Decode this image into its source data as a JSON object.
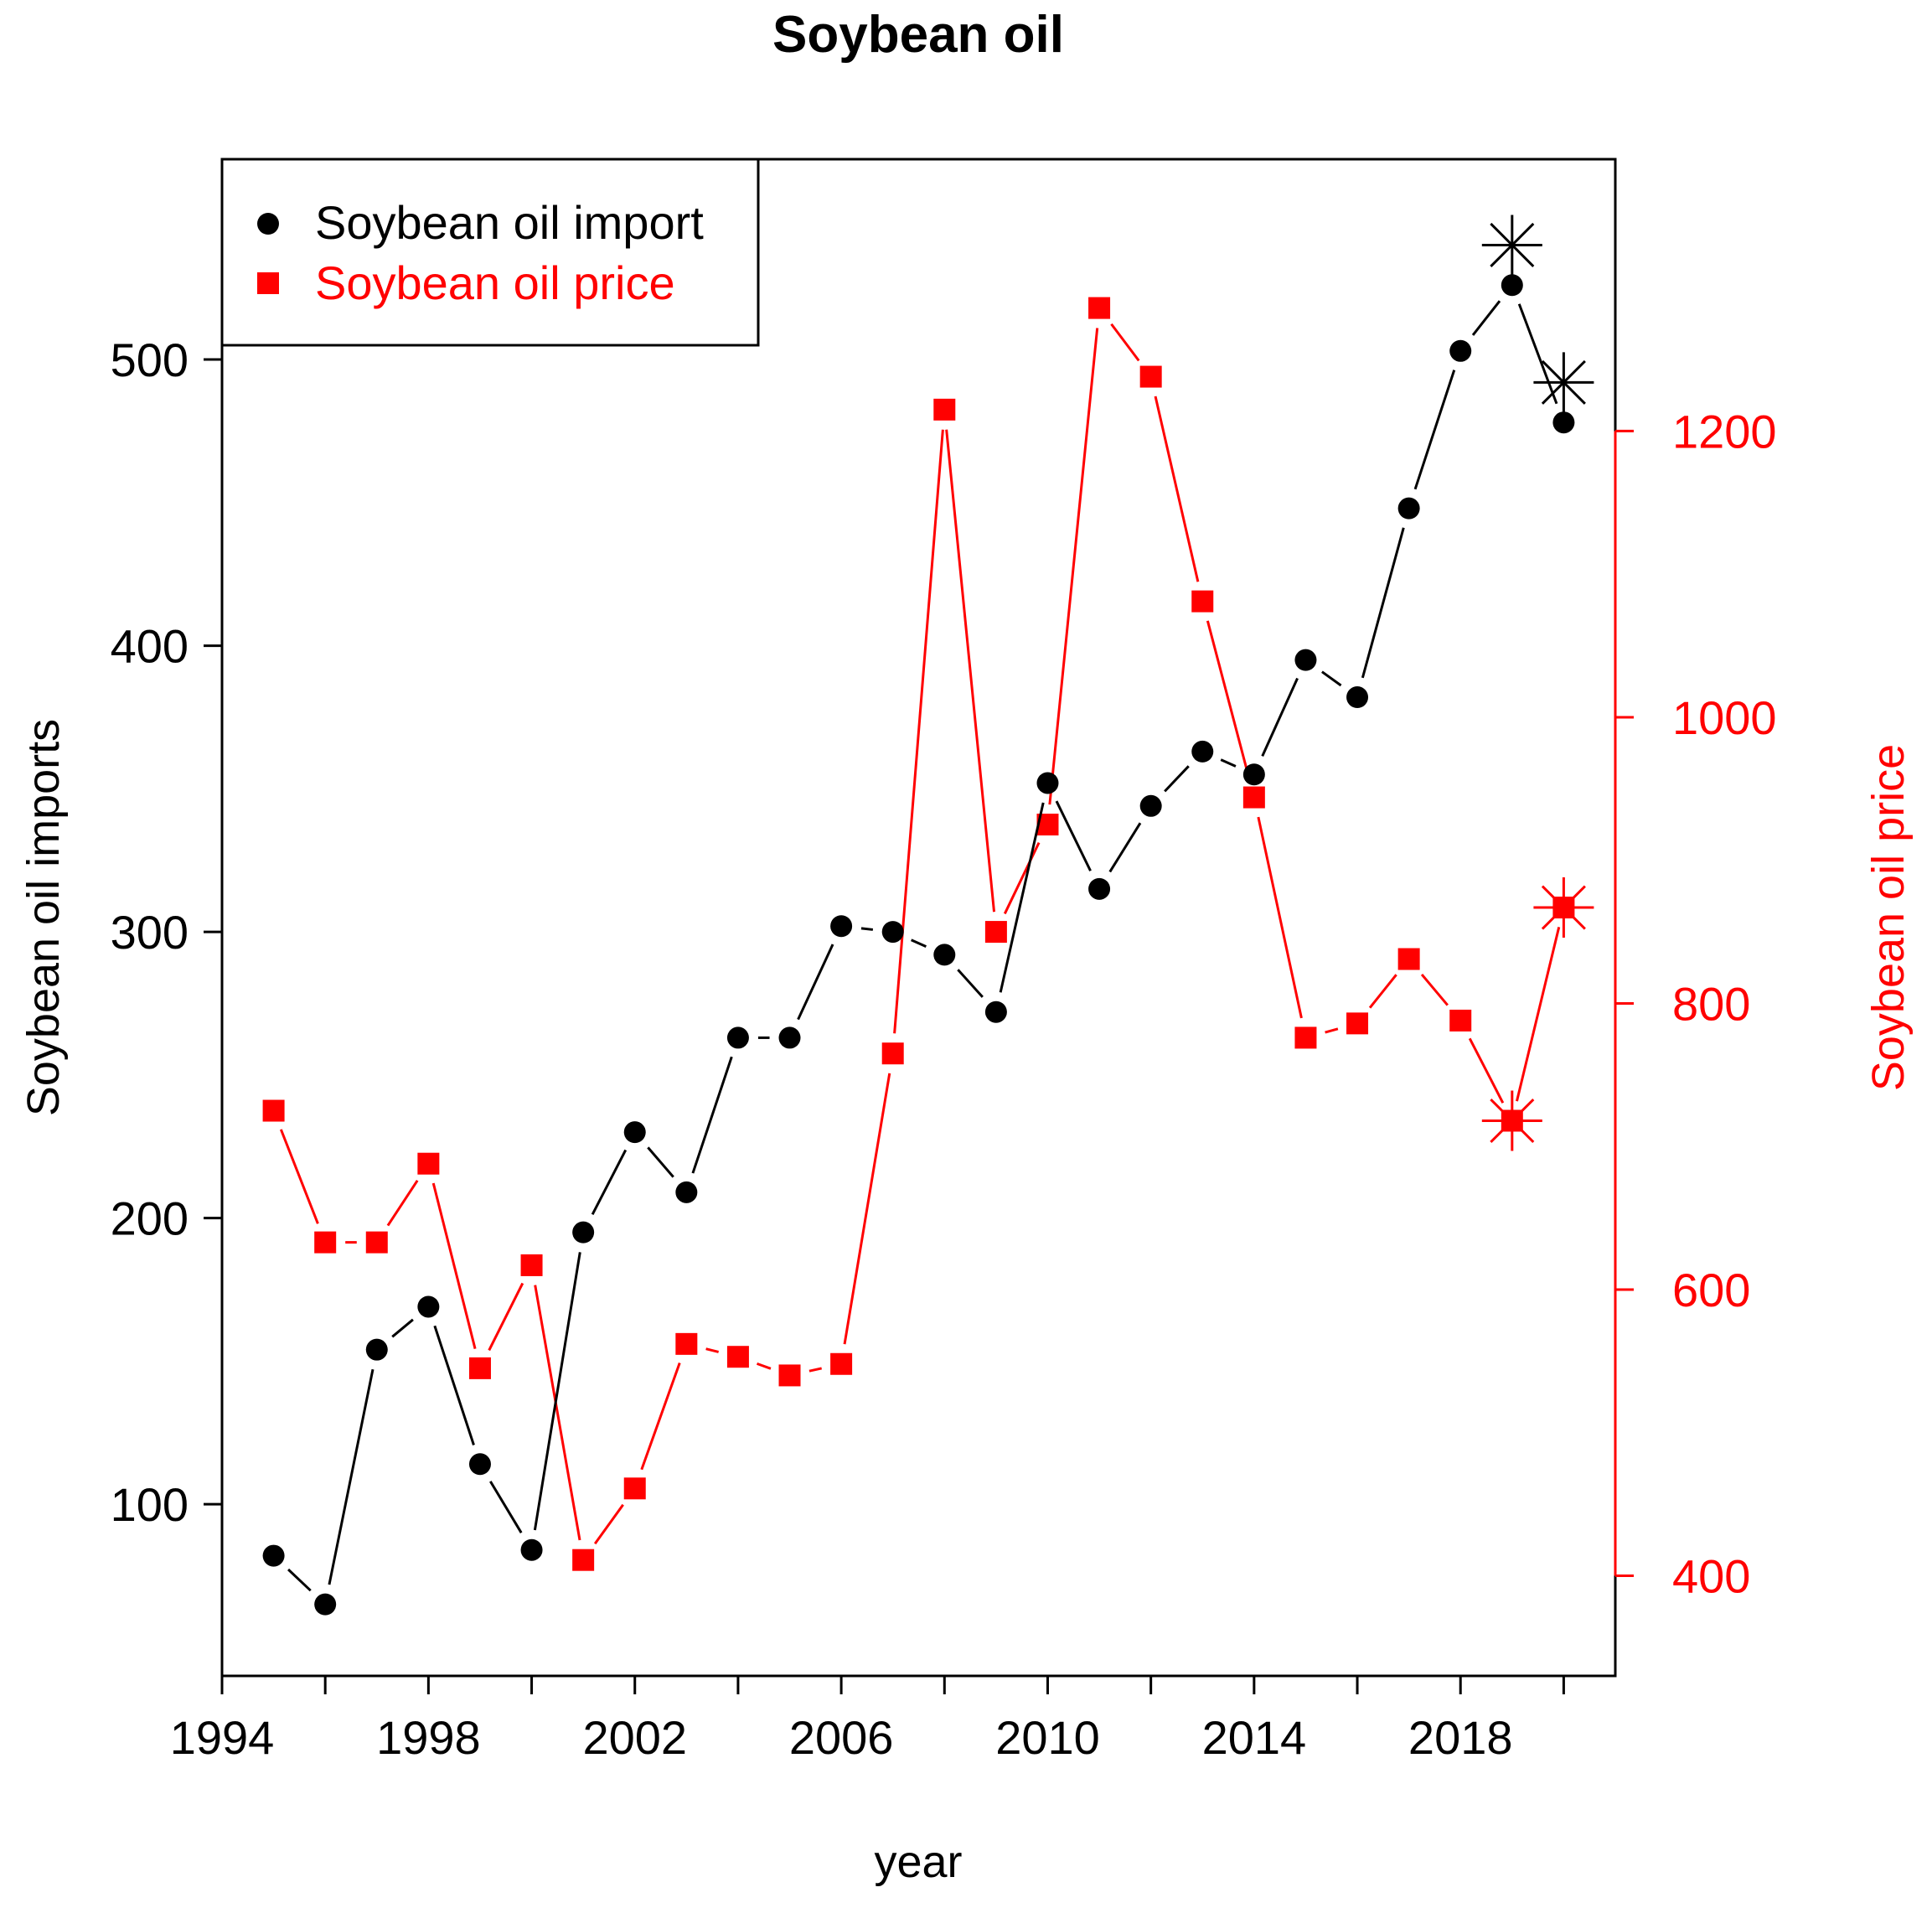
{
  "chart_data": {
    "type": "line",
    "title": "Soybean oil",
    "xlabel": "year",
    "ylabel_left": "Soybean oil imports",
    "ylabel_right": "Soybean oil price",
    "xlim": [
      1994,
      2021
    ],
    "ylim_left": [
      40,
      570
    ],
    "ylim_right": [
      330,
      1390
    ],
    "x_ticks": [
      1994,
      1996,
      1998,
      2000,
      2002,
      2004,
      2006,
      2008,
      2010,
      2012,
      2014,
      2016,
      2018,
      2020
    ],
    "x_tick_labels": [
      "1994",
      "",
      "1998",
      "",
      "2002",
      "",
      "2006",
      "",
      "2010",
      "",
      "2014",
      "",
      "2018",
      ""
    ],
    "y_left_ticks": [
      100,
      200,
      300,
      400,
      500
    ],
    "y_left_tick_labels": [
      "100",
      "200",
      "300",
      "400",
      "500"
    ],
    "y_right_ticks": [
      400,
      600,
      800,
      1000,
      1200
    ],
    "y_right_tick_labels": [
      "400",
      "600",
      "800",
      "1000",
      "1200"
    ],
    "legend_position": "top-left",
    "colors": {
      "import": "#000000",
      "price": "#ff0000"
    },
    "x": [
      1995,
      1996,
      1997,
      1998,
      1999,
      2000,
      2001,
      2002,
      2003,
      2004,
      2005,
      2006,
      2007,
      2008,
      2009,
      2010,
      2011,
      2012,
      2013,
      2014,
      2015,
      2016,
      2017,
      2018,
      2019,
      2020
    ],
    "series": [
      {
        "name": "Soybean oil import",
        "axis": "left",
        "marker": "circle",
        "color": "#000000",
        "values": [
          82,
          65,
          154,
          169,
          114,
          84,
          195,
          230,
          209,
          263,
          263,
          302,
          300,
          292,
          272,
          352,
          315,
          344,
          363,
          355,
          395,
          382,
          448,
          503,
          526,
          478
        ],
        "forecast": [
          {
            "x": 2019,
            "y": 540
          },
          {
            "x": 2020,
            "y": 492
          }
        ]
      },
      {
        "name": "Soybean oil price",
        "axis": "right",
        "marker": "square",
        "color": "#ff0000",
        "values": [
          725,
          633,
          633,
          688,
          545,
          617,
          411,
          461,
          562,
          553,
          540,
          548,
          765,
          1215,
          850,
          925,
          1286,
          1238,
          1081,
          944,
          776,
          786,
          831,
          788,
          718,
          867
        ],
        "forecast": [
          {
            "x": 2019,
            "y": 718
          },
          {
            "x": 2020,
            "y": 867
          }
        ]
      }
    ]
  }
}
